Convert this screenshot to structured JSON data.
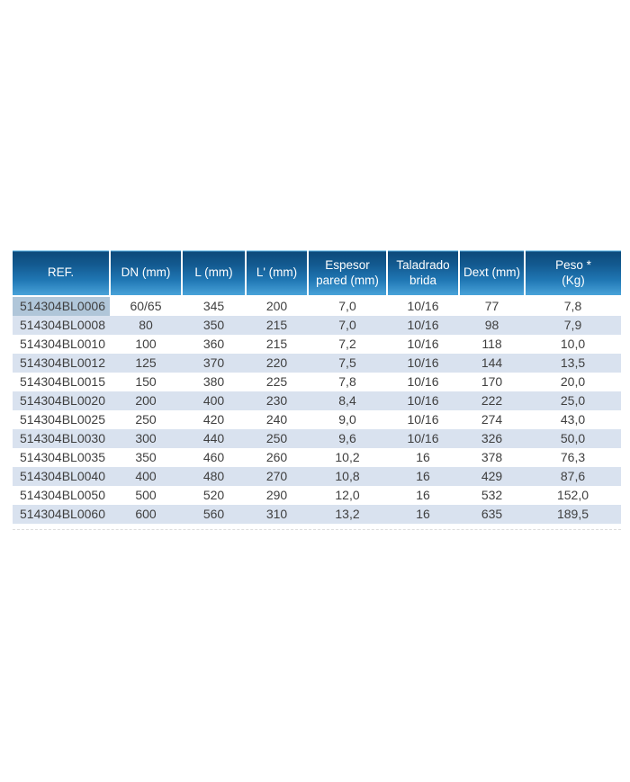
{
  "table": {
    "columns": [
      {
        "id": "ref",
        "label": "REF."
      },
      {
        "id": "dn",
        "label": "DN (mm)"
      },
      {
        "id": "l",
        "label": "L (mm)"
      },
      {
        "id": "l_prime",
        "label": "L' (mm)"
      },
      {
        "id": "espesor",
        "label": "Espesor\npared (mm)"
      },
      {
        "id": "taladrado",
        "label": "Taladrado\nbrida"
      },
      {
        "id": "dext",
        "label": "Dext (mm)"
      },
      {
        "id": "peso",
        "label": "Peso *\n(Kg)"
      }
    ],
    "rows": [
      [
        "514304BL0006",
        "60/65",
        "345",
        "200",
        "7,0",
        "10/16",
        "77",
        "7,8"
      ],
      [
        "514304BL0008",
        "80",
        "350",
        "215",
        "7,0",
        "10/16",
        "98",
        "7,9"
      ],
      [
        "514304BL0010",
        "100",
        "360",
        "215",
        "7,2",
        "10/16",
        "118",
        "10,0"
      ],
      [
        "514304BL0012",
        "125",
        "370",
        "220",
        "7,5",
        "10/16",
        "144",
        "13,5"
      ],
      [
        "514304BL0015",
        "150",
        "380",
        "225",
        "7,8",
        "10/16",
        "170",
        "20,0"
      ],
      [
        "514304BL0020",
        "200",
        "400",
        "230",
        "8,4",
        "10/16",
        "222",
        "25,0"
      ],
      [
        "514304BL0025",
        "250",
        "420",
        "240",
        "9,0",
        "10/16",
        "274",
        "43,0"
      ],
      [
        "514304BL0030",
        "300",
        "440",
        "250",
        "9,6",
        "10/16",
        "326",
        "50,0"
      ],
      [
        "514304BL0035",
        "350",
        "460",
        "260",
        "10,2",
        "16",
        "378",
        "76,3"
      ],
      [
        "514304BL0040",
        "400",
        "480",
        "270",
        "10,8",
        "16",
        "429",
        "87,6"
      ],
      [
        "514304BL0050",
        "500",
        "520",
        "290",
        "12,0",
        "16",
        "532",
        "152,0"
      ],
      [
        "514304BL0060",
        "600",
        "560",
        "310",
        "13,2",
        "16",
        "635",
        "189,5"
      ]
    ],
    "highlight": {
      "row": 0,
      "col": 0
    }
  },
  "colors": {
    "header_gradient_top": "#0d4a7a",
    "header_gradient_mid": "#2077b4",
    "header_gradient_bottom": "#4aa4da",
    "header_top_edge": "#9ed3ee",
    "row_stripe": "#d9e2ef",
    "selection_highlight": "#b0c6d9",
    "body_text": "#3f3f3f",
    "header_text": "#ffffff"
  }
}
